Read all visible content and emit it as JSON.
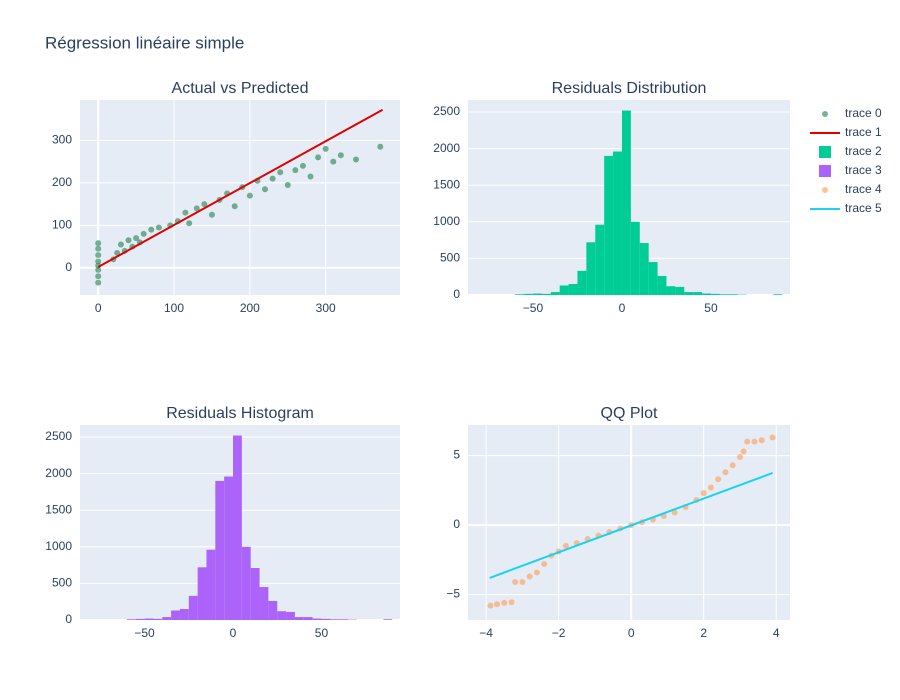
{
  "title": "Régression linéaire simple",
  "chart_data": [
    {
      "type": "scatter",
      "title": "Actual vs Predicted",
      "grid": true,
      "xlim": [
        -24,
        398
      ],
      "ylim": [
        -64,
        395
      ],
      "xticks": [
        0,
        100,
        200,
        300
      ],
      "yticks": [
        0,
        100,
        200,
        300
      ],
      "series": [
        {
          "name": "trace 0",
          "mode": "markers",
          "color": "#2e8b57",
          "x": [
            0,
            0,
            0,
            0,
            0,
            0,
            0,
            0,
            20,
            25,
            30,
            35,
            40,
            45,
            50,
            55,
            60,
            70,
            80,
            95,
            105,
            115,
            120,
            130,
            140,
            150,
            160,
            170,
            180,
            190,
            200,
            210,
            220,
            230,
            240,
            250,
            260,
            270,
            280,
            290,
            300,
            310,
            320,
            340,
            372
          ],
          "values": [
            -35,
            -20,
            -5,
            5,
            15,
            30,
            45,
            58,
            20,
            35,
            55,
            40,
            65,
            50,
            70,
            60,
            80,
            90,
            95,
            100,
            110,
            130,
            105,
            140,
            150,
            125,
            160,
            175,
            145,
            190,
            170,
            205,
            185,
            210,
            225,
            195,
            230,
            240,
            215,
            260,
            280,
            250,
            265,
            255,
            285
          ]
        },
        {
          "name": "trace 1",
          "mode": "lines",
          "color": "#e00000",
          "x": [
            0,
            375
          ],
          "values": [
            2,
            372
          ]
        }
      ]
    },
    {
      "type": "histogram",
      "title": "Residuals Distribution",
      "grid": true,
      "xlim": [
        -86.5,
        94.4
      ],
      "ylim": [
        0,
        2664
      ],
      "xticks": [
        {
          "value": -50,
          "label": "−50"
        },
        0,
        50
      ],
      "yticks": [
        0,
        500,
        1000,
        1500,
        2000,
        2500
      ],
      "bins": [
        -60,
        -55,
        -50,
        -45,
        -40,
        -35,
        -30,
        -25,
        -20,
        -15,
        -10,
        -5,
        0,
        5,
        10,
        15,
        20,
        25,
        30,
        35,
        40,
        45,
        50,
        55,
        60,
        65,
        70,
        75,
        80,
        85,
        90
      ],
      "series": [
        {
          "name": "trace 2",
          "color": "#00cc96",
          "values": [
            10,
            15,
            20,
            15,
            40,
            130,
            150,
            330,
            720,
            960,
            1900,
            1960,
            2520,
            1000,
            710,
            450,
            260,
            120,
            110,
            40,
            40,
            20,
            15,
            10,
            10,
            5,
            0,
            0,
            0,
            10
          ]
        }
      ]
    },
    {
      "type": "histogram",
      "title": "Residuals Histogram",
      "grid": true,
      "xlim": [
        -86.5,
        94.4
      ],
      "ylim": [
        0,
        2664
      ],
      "xticks": [
        {
          "value": -50,
          "label": "−50"
        },
        0,
        50
      ],
      "yticks": [
        0,
        500,
        1000,
        1500,
        2000,
        2500
      ],
      "bins": [
        -60,
        -55,
        -50,
        -45,
        -40,
        -35,
        -30,
        -25,
        -20,
        -15,
        -10,
        -5,
        0,
        5,
        10,
        15,
        20,
        25,
        30,
        35,
        40,
        45,
        50,
        55,
        60,
        65,
        70,
        75,
        80,
        85,
        90
      ],
      "series": [
        {
          "name": "trace 3",
          "color": "#ab63fa",
          "values": [
            10,
            15,
            20,
            15,
            40,
            130,
            150,
            330,
            720,
            960,
            1900,
            1960,
            2520,
            1000,
            710,
            450,
            260,
            120,
            110,
            40,
            40,
            20,
            15,
            10,
            10,
            5,
            0,
            0,
            0,
            10
          ]
        }
      ]
    },
    {
      "type": "scatter",
      "title": "QQ Plot",
      "grid": true,
      "xlim": [
        -4.5,
        4.38
      ],
      "ylim": [
        -6.83,
        7.2
      ],
      "xticks": [
        {
          "value": -4,
          "label": "−4"
        },
        {
          "value": -2,
          "label": "−2"
        },
        0,
        2,
        4
      ],
      "yticks": [
        {
          "value": -5,
          "label": "−5"
        },
        0,
        5
      ],
      "series": [
        {
          "name": "trace 4",
          "mode": "markers",
          "color": "#ffa15a",
          "x": [
            -3.88,
            -3.7,
            -3.5,
            -3.3,
            -3.2,
            -3.0,
            -2.8,
            -2.6,
            -2.4,
            -2.2,
            -2.0,
            -1.8,
            -1.5,
            -1.2,
            -0.9,
            -0.6,
            -0.3,
            0,
            0.3,
            0.6,
            0.9,
            1.2,
            1.5,
            1.8,
            2.0,
            2.2,
            2.4,
            2.6,
            2.8,
            3.0,
            3.1,
            3.2,
            3.4,
            3.6,
            3.9
          ],
          "values": [
            -5.8,
            -5.7,
            -5.6,
            -5.55,
            -4.1,
            -4.1,
            -3.7,
            -3.4,
            -2.8,
            -2.2,
            -1.9,
            -1.5,
            -1.3,
            -1.0,
            -0.75,
            -0.5,
            -0.25,
            0,
            0.2,
            0.4,
            0.65,
            0.9,
            1.3,
            1.8,
            2.3,
            2.7,
            3.3,
            3.8,
            4.3,
            4.9,
            5.3,
            6.0,
            6.0,
            6.1,
            6.3
          ]
        },
        {
          "name": "trace 5",
          "mode": "lines",
          "color": "#19d3f3",
          "x": [
            -3.9,
            3.9
          ],
          "values": [
            -3.8,
            3.75
          ]
        }
      ]
    }
  ]
}
